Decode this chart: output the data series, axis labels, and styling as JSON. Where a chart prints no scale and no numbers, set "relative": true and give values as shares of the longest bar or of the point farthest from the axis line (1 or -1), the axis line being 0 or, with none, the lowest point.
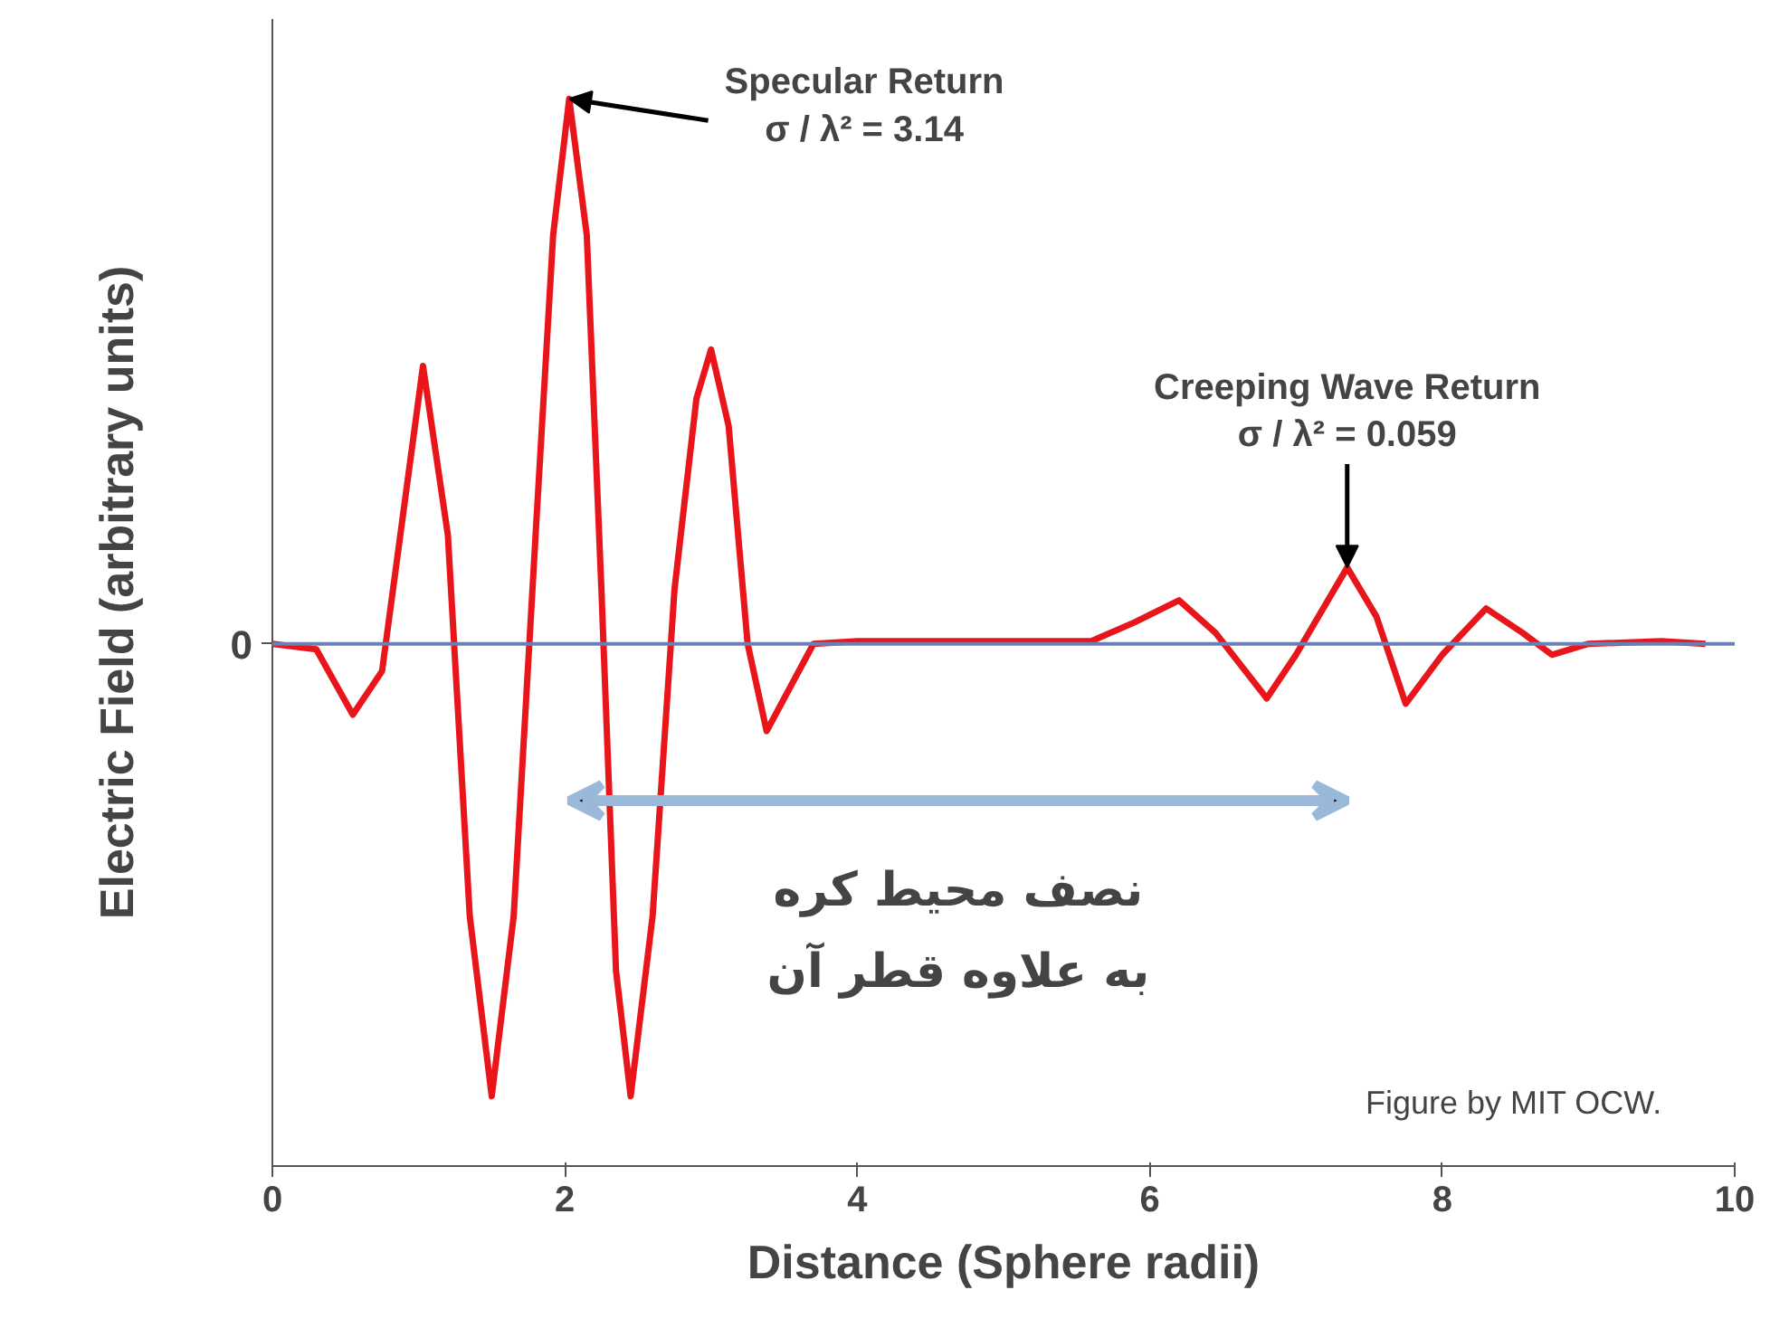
{
  "chart_data": {
    "type": "line",
    "relative": true,
    "xlabel": "Distance (Sphere radii)",
    "ylabel": "Electric Field (arbitrary units)",
    "x": [
      0,
      0.3,
      0.55,
      0.75,
      0.9,
      1.03,
      1.2,
      1.35,
      1.5,
      1.65,
      1.8,
      1.92,
      2.03,
      2.15,
      2.25,
      2.35,
      2.45,
      2.6,
      2.75,
      2.9,
      3.0,
      3.12,
      3.25,
      3.38,
      3.5,
      3.7,
      4.0,
      5.0,
      5.6,
      5.9,
      6.2,
      6.45,
      6.8,
      7.0,
      7.35,
      7.55,
      7.75,
      8.0,
      8.3,
      8.55,
      8.75,
      9.0,
      9.5,
      9.8
    ],
    "series": [
      {
        "color": "#e8151b",
        "values": [
          0,
          -0.01,
          -0.13,
          -0.05,
          0.25,
          0.51,
          0.2,
          -0.5,
          -0.83,
          -0.5,
          0.2,
          0.75,
          1.0,
          0.75,
          0.1,
          -0.6,
          -0.83,
          -0.5,
          0.1,
          0.45,
          0.54,
          0.4,
          0.0,
          -0.16,
          -0.1,
          0.0,
          0.005,
          0.005,
          0.005,
          0.04,
          0.08,
          0.02,
          -0.1,
          -0.02,
          0.14,
          0.05,
          -0.11,
          -0.02,
          0.065,
          0.02,
          -0.02,
          0.0,
          0.005,
          0.0
        ]
      }
    ],
    "xlim": [
      0,
      10
    ],
    "xticks": [
      0,
      2,
      4,
      6,
      8,
      10
    ],
    "grid": false,
    "marker": "none",
    "line_style": "solid",
    "ref_lines": [
      {
        "axis": "y",
        "value": 0,
        "label": "0",
        "color": "#6a7fb5"
      }
    ],
    "annotations": [
      {
        "text": "Specular Return\nσ / λ² = 3.14",
        "x": 2.03,
        "y": 1.0
      },
      {
        "text": "Creeping Wave Return\nσ / λ² = 0.059",
        "x": 7.35,
        "y": 0.14
      },
      "نصف محیط کره\nبه علاوه قطر آن",
      "Figure by MIT OCW."
    ]
  }
}
